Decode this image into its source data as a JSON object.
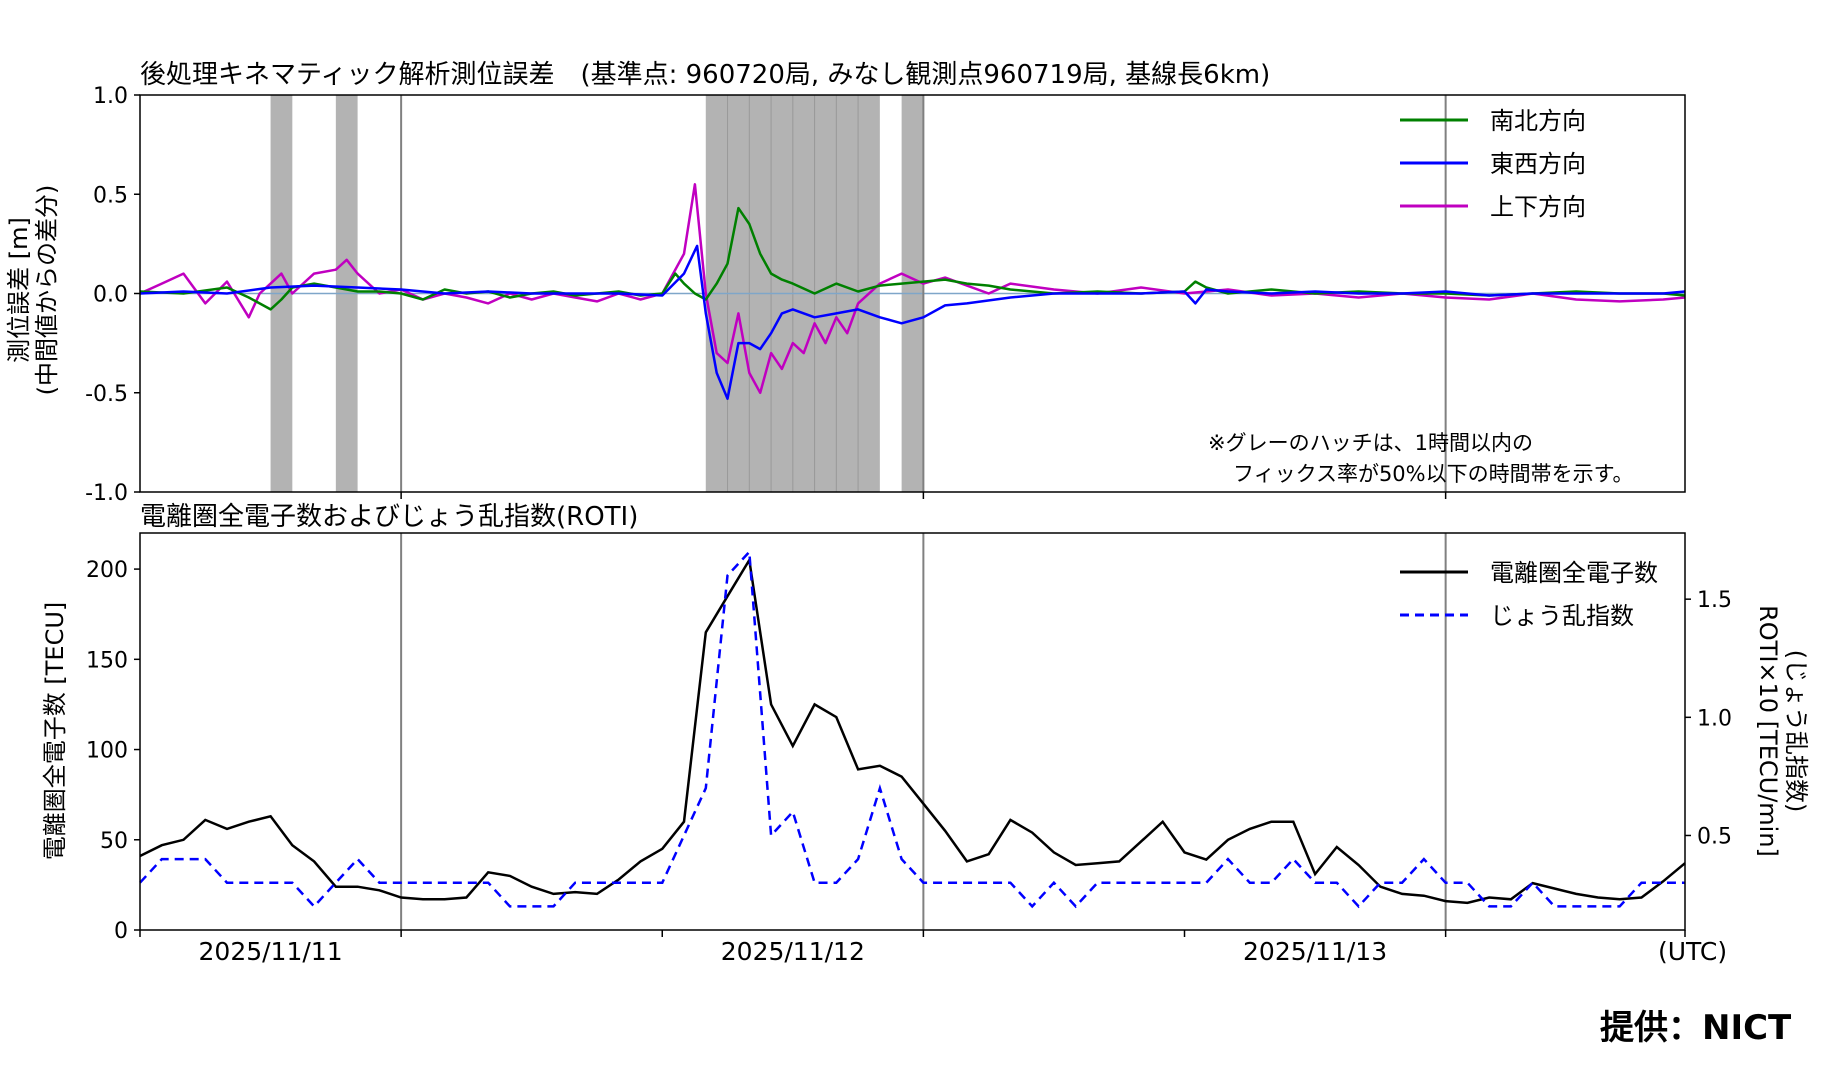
{
  "credit": "提供：NICT",
  "colors": {
    "ns": "#008000",
    "ew": "#0000ff",
    "ud": "#c000c0",
    "tec": "#000000",
    "roti": "#0000ff",
    "hatch": "#b3b3b3",
    "dayline": "#808080"
  },
  "chart_data": [
    {
      "type": "line",
      "title": "後処理キネマティック解析測位誤差　(基準点: 960720局, みなし観測点960719局, 基線長6km)",
      "ylabel": "測位誤差 [m]\n(中間値からの差分)",
      "ylim": [
        -1.0,
        1.0
      ],
      "yticks": [
        "1.0",
        "0.5",
        "0.0",
        "-0.5",
        "-1.0"
      ],
      "xlim": [
        0,
        71
      ],
      "x_unit": "hours since 2025/11/11 00:00 UTC (axis starts 2025/11/10 12:00)",
      "note": [
        "※グレーのハッチは、1時間以内の",
        "フィックス率が50%以下の時間帯を示す。"
      ],
      "hatched_hours": [
        [
          6,
          7
        ],
        [
          9,
          10
        ],
        [
          26,
          34
        ],
        [
          35,
          36
        ]
      ],
      "legend": {
        "position": "upper right",
        "entries": [
          "南北方向",
          "東西方向",
          "上下方向"
        ]
      },
      "series": [
        {
          "name": "南北方向",
          "x": [
            0,
            2,
            4,
            5,
            6,
            6.5,
            7,
            8,
            9,
            10,
            11,
            12,
            13,
            14,
            15,
            16,
            17,
            18,
            19,
            20,
            21,
            22,
            23,
            24,
            24.6,
            25,
            25.5,
            26,
            26.5,
            27,
            27.5,
            28,
            28.5,
            29,
            29.5,
            30,
            31,
            32,
            33,
            34,
            35,
            36,
            37,
            38,
            39,
            40,
            42,
            44,
            46,
            48,
            48.5,
            49,
            50,
            52,
            54,
            56,
            58,
            60,
            62,
            64,
            66,
            68,
            70,
            71
          ],
          "y": [
            0.01,
            0.0,
            0.03,
            -0.02,
            -0.08,
            -0.03,
            0.03,
            0.05,
            0.03,
            0.01,
            0.01,
            0.0,
            -0.03,
            0.02,
            0.0,
            0.01,
            -0.02,
            0.0,
            0.01,
            -0.01,
            0.0,
            0.01,
            -0.01,
            0.0,
            0.1,
            0.05,
            0.0,
            -0.03,
            0.05,
            0.15,
            0.43,
            0.35,
            0.2,
            0.1,
            0.07,
            0.05,
            0.0,
            0.05,
            0.01,
            0.04,
            0.05,
            0.06,
            0.07,
            0.05,
            0.04,
            0.02,
            0.0,
            0.01,
            0.0,
            0.01,
            0.06,
            0.03,
            0.0,
            0.02,
            0.0,
            0.01,
            0.0,
            0.0,
            -0.01,
            0.0,
            0.01,
            0.0,
            0.0,
            -0.01
          ]
        },
        {
          "name": "東西方向",
          "x": [
            0,
            2,
            4,
            6,
            8,
            10,
            12,
            14,
            16,
            18,
            20,
            22,
            24,
            25,
            25.6,
            26,
            26.5,
            27,
            27.5,
            28,
            28.5,
            29,
            29.5,
            30,
            31,
            32,
            33,
            34,
            35,
            36,
            37,
            38,
            40,
            42,
            44,
            46,
            48,
            48.5,
            49,
            50,
            52,
            54,
            56,
            58,
            60,
            62,
            64,
            66,
            68,
            70,
            71
          ],
          "y": [
            0.0,
            0.01,
            0.0,
            0.03,
            0.04,
            0.03,
            0.02,
            0.0,
            0.01,
            0.0,
            0.0,
            0.0,
            -0.01,
            0.1,
            0.24,
            -0.1,
            -0.4,
            -0.53,
            -0.25,
            -0.25,
            -0.28,
            -0.2,
            -0.1,
            -0.08,
            -0.12,
            -0.1,
            -0.08,
            -0.12,
            -0.15,
            -0.12,
            -0.06,
            -0.05,
            -0.02,
            0.0,
            0.0,
            0.0,
            0.01,
            -0.05,
            0.02,
            0.01,
            0.0,
            0.01,
            0.0,
            0.0,
            0.01,
            -0.01,
            0.0,
            0.0,
            0.0,
            0.0,
            0.01
          ]
        },
        {
          "name": "上下方向",
          "x": [
            0,
            1,
            2,
            3,
            4,
            5,
            5.5,
            6,
            6.5,
            7,
            8,
            9,
            9.5,
            10,
            11,
            12,
            13,
            14,
            15,
            16,
            17,
            18,
            19,
            20,
            21,
            22,
            23,
            24,
            25,
            25.5,
            26,
            26.5,
            27,
            27.5,
            28,
            28.5,
            29,
            29.5,
            30,
            30.5,
            31,
            31.5,
            32,
            32.5,
            33,
            34,
            35,
            36,
            37,
            38,
            39,
            40,
            42,
            44,
            46,
            48,
            50,
            52,
            54,
            56,
            58,
            60,
            62,
            64,
            66,
            68,
            70,
            71
          ],
          "y": [
            0.0,
            0.05,
            0.1,
            -0.05,
            0.06,
            -0.12,
            0.0,
            0.05,
            0.1,
            0.0,
            0.1,
            0.12,
            0.17,
            0.1,
            0.0,
            0.02,
            -0.03,
            0.0,
            -0.02,
            -0.05,
            0.0,
            -0.03,
            0.0,
            -0.02,
            -0.04,
            0.0,
            -0.03,
            0.0,
            0.2,
            0.55,
            0.0,
            -0.3,
            -0.35,
            -0.1,
            -0.4,
            -0.5,
            -0.3,
            -0.38,
            -0.25,
            -0.3,
            -0.15,
            -0.25,
            -0.12,
            -0.2,
            -0.05,
            0.05,
            0.1,
            0.05,
            0.08,
            0.04,
            0.0,
            0.05,
            0.02,
            0.0,
            0.03,
            0.0,
            0.02,
            -0.01,
            0.0,
            -0.02,
            0.0,
            -0.02,
            -0.03,
            0.0,
            -0.03,
            -0.04,
            -0.03,
            -0.02
          ]
        }
      ],
      "x_ticks": [
        12,
        36,
        60
      ]
    },
    {
      "type": "line",
      "title": "電離圏全電子数およびじょう乱指数(ROTI)",
      "ylabel": "電離圏全電子数 [TECU]",
      "ylabel_right": "ROTI×10 [TECU/min]\n(じょう乱指数)",
      "ylim": [
        0,
        220
      ],
      "yticks": [
        "0",
        "50",
        "100",
        "150",
        "200"
      ],
      "ylim_right": [
        0.1,
        1.78
      ],
      "yticks_right": [
        "0.5",
        "1.0",
        "1.5"
      ],
      "xlim": [
        0,
        71
      ],
      "x_tick_labels": [
        "2025/11/11",
        "2025/11/12",
        "2025/11/13"
      ],
      "x_unit_label": "(UTC)",
      "legend": {
        "position": "upper right",
        "entries": [
          "電離圏全電子数",
          "じょう乱指数"
        ]
      },
      "series": [
        {
          "name": "電離圏全電子数",
          "axis": "left",
          "x": [
            0,
            1,
            2,
            3,
            4,
            5,
            6,
            7,
            8,
            9,
            10,
            11,
            12,
            13,
            14,
            15,
            16,
            17,
            18,
            19,
            20,
            21,
            22,
            23,
            24,
            25,
            26,
            27,
            28,
            29,
            30,
            31,
            32,
            33,
            34,
            35,
            36,
            37,
            38,
            39,
            40,
            41,
            42,
            43,
            44,
            45,
            46,
            47,
            48,
            49,
            50,
            51,
            52,
            53,
            54,
            55,
            56,
            57,
            58,
            59,
            60,
            61,
            62,
            63,
            64,
            65,
            66,
            67,
            68,
            69,
            70,
            71
          ],
          "y": [
            41,
            47,
            50,
            61,
            56,
            60,
            63,
            47,
            38,
            24,
            24,
            22,
            18,
            17,
            17,
            18,
            32,
            30,
            24,
            20,
            21,
            20,
            28,
            38,
            45,
            60,
            165,
            185,
            205,
            125,
            102,
            125,
            118,
            89,
            91,
            85,
            70,
            55,
            38,
            42,
            61,
            54,
            43,
            36,
            37,
            38,
            49,
            60,
            43,
            39,
            50,
            56,
            60,
            60,
            31,
            46,
            36,
            24,
            20,
            19,
            16,
            15,
            18,
            17,
            26,
            23,
            20,
            18,
            17,
            18,
            27,
            37
          ]
        },
        {
          "name": "じょう乱指数",
          "axis": "right",
          "x": [
            0,
            1,
            2,
            3,
            4,
            5,
            6,
            7,
            8,
            9,
            10,
            11,
            12,
            13,
            14,
            15,
            16,
            17,
            18,
            19,
            20,
            21,
            22,
            23,
            24,
            25,
            26,
            27,
            28,
            29,
            30,
            31,
            32,
            33,
            34,
            35,
            36,
            37,
            38,
            39,
            40,
            41,
            42,
            43,
            44,
            45,
            46,
            47,
            48,
            49,
            50,
            51,
            52,
            53,
            54,
            55,
            56,
            57,
            58,
            59,
            60,
            61,
            62,
            63,
            64,
            65,
            66,
            67,
            68,
            69,
            70,
            71
          ],
          "y": [
            0.3,
            0.4,
            0.4,
            0.4,
            0.3,
            0.3,
            0.3,
            0.3,
            0.2,
            0.3,
            0.4,
            0.3,
            0.3,
            0.3,
            0.3,
            0.3,
            0.3,
            0.2,
            0.2,
            0.2,
            0.3,
            0.3,
            0.3,
            0.3,
            0.3,
            0.5,
            0.7,
            1.6,
            1.7,
            0.5,
            0.6,
            0.3,
            0.3,
            0.4,
            0.7,
            0.4,
            0.3,
            0.3,
            0.3,
            0.3,
            0.3,
            0.2,
            0.3,
            0.2,
            0.3,
            0.3,
            0.3,
            0.3,
            0.3,
            0.3,
            0.4,
            0.3,
            0.3,
            0.4,
            0.3,
            0.3,
            0.2,
            0.3,
            0.3,
            0.4,
            0.3,
            0.3,
            0.2,
            0.2,
            0.3,
            0.2,
            0.2,
            0.2,
            0.2,
            0.3,
            0.3,
            0.3
          ]
        }
      ]
    }
  ]
}
